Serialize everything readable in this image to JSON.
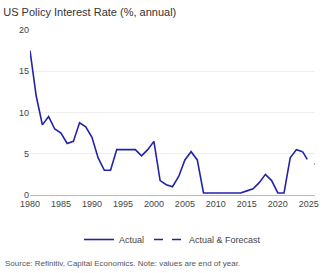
{
  "chart_data": {
    "type": "line",
    "title": "US Policy Interest Rate (%, annual)",
    "annotations": [
      "Source: Refinitiv, Capital Economics. Note: values are end of year."
    ],
    "series": [
      {
        "name": "Actual",
        "color": "#2222aa",
        "line_style": "solid",
        "x": [
          1980,
          1981,
          1982,
          1983,
          1984,
          1985,
          1986,
          1987,
          1988,
          1989,
          1990,
          1991,
          1992,
          1993,
          1994,
          1995,
          1996,
          1997,
          1998,
          1999,
          2000,
          2001,
          2002,
          2003,
          2004,
          2005,
          2006,
          2007,
          2008,
          2009,
          2010,
          2011,
          2012,
          2013,
          2014,
          2015,
          2016,
          2017,
          2018,
          2019,
          2020,
          2021,
          2022,
          2023,
          2024
        ],
        "values": [
          17.5,
          12.0,
          8.5,
          9.5,
          8.0,
          7.5,
          6.25,
          6.5,
          8.75,
          8.25,
          7.0,
          4.5,
          3.0,
          3.0,
          5.5,
          5.5,
          5.5,
          5.5,
          4.75,
          5.5,
          6.5,
          1.75,
          1.25,
          1.0,
          2.25,
          4.25,
          5.25,
          4.25,
          0.25,
          0.25,
          0.25,
          0.25,
          0.25,
          0.25,
          0.25,
          0.5,
          0.75,
          1.5,
          2.5,
          1.75,
          0.25,
          0.25,
          4.5,
          5.5,
          5.25
        ]
      },
      {
        "name": "Actual & Forecast",
        "color": "#2222aa",
        "line_style": "dashed",
        "x": [
          2024,
          2025,
          2026
        ],
        "values": [
          5.25,
          4.0,
          3.75
        ]
      }
    ],
    "xlim": [
      1980,
      2026
    ],
    "xticks": [
      1980,
      1985,
      1990,
      1995,
      2000,
      2005,
      2010,
      2015,
      2020,
      2025
    ],
    "ylim": [
      0,
      20
    ],
    "yticks": [
      0,
      5,
      10,
      15,
      20
    ],
    "grid": "y",
    "legend": "bottom"
  }
}
